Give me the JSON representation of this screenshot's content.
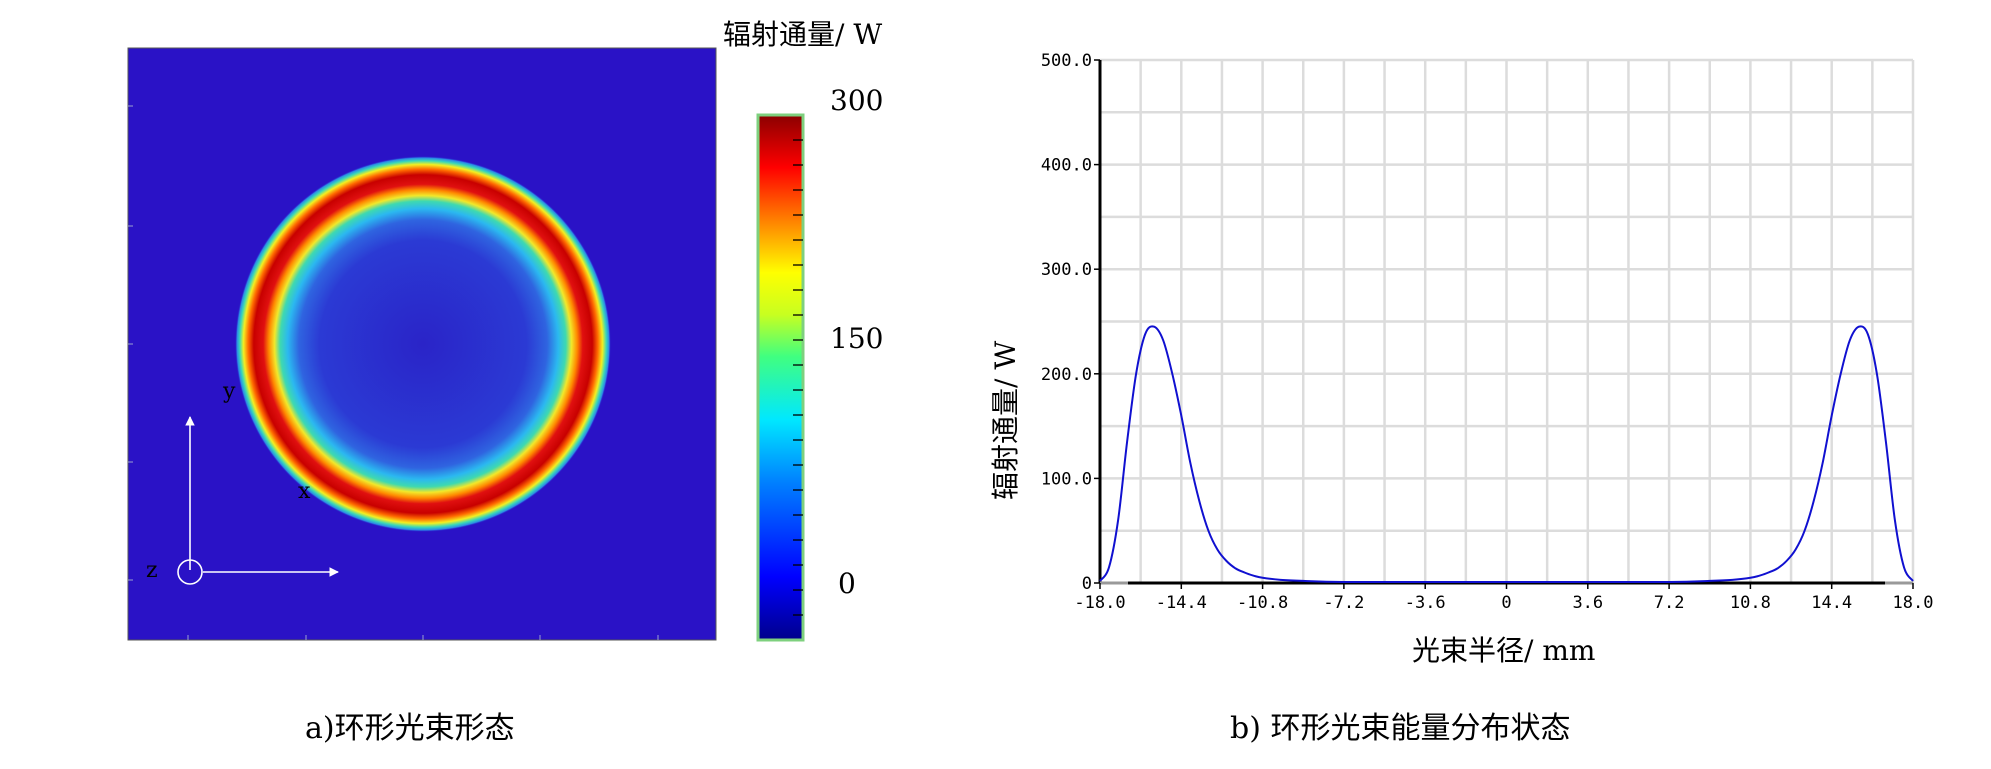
{
  "figure_a": {
    "caption": "a)环形光束形态",
    "colorbar_title": "辐射通量/ W",
    "colorbar_ticks": [
      "300",
      "150",
      "0"
    ],
    "colorbar_range": [
      0,
      300
    ],
    "axes": {
      "x": "x",
      "y": "y",
      "z": "z"
    },
    "colors": {
      "background": "#2a12c6",
      "ring_peak": "#c00000"
    }
  },
  "figure_b": {
    "caption": "b) 环形光束能量分布状态",
    "line_color": "#1010d0"
  },
  "chart_data": {
    "type": "line",
    "xlabel": "光束半径/ mm",
    "ylabel": "辐射通量/ W",
    "xlim": [
      -18,
      18
    ],
    "ylim": [
      0,
      500
    ],
    "grid": true,
    "xticks": [
      "-18.0",
      "-14.4",
      "-10.8",
      "-7.2",
      "-3.6",
      "0",
      "3.6",
      "7.2",
      "10.8",
      "14.4",
      "18.0"
    ],
    "yticks": [
      "0",
      "100.0",
      "200.0",
      "300.0",
      "400.0",
      "500.0"
    ],
    "series": [
      {
        "x": [
          -18.0,
          -17.6,
          -17.2,
          -16.8,
          -16.4,
          -16.0,
          -15.6,
          -15.2,
          -14.8,
          -14.4,
          -14.0,
          -13.6,
          -13.2,
          -12.8,
          -12.4,
          -12.0,
          -11.6,
          -11.2,
          -10.8,
          -10.0,
          -9.0,
          -7.2,
          -3.6,
          0,
          3.6,
          7.2,
          9.0,
          10.0,
          10.8,
          11.2,
          11.6,
          12.0,
          12.4,
          12.8,
          13.2,
          13.6,
          14.0,
          14.4,
          14.8,
          15.2,
          15.6,
          16.0,
          16.4,
          16.8,
          17.2,
          17.6,
          18.0
        ],
        "y": [
          2,
          15,
          60,
          135,
          200,
          238,
          245,
          232,
          200,
          160,
          115,
          78,
          50,
          32,
          21,
          14,
          10,
          7,
          5,
          3,
          2,
          1,
          1,
          1,
          1,
          1,
          2,
          3,
          5,
          7,
          10,
          14,
          21,
          32,
          50,
          78,
          115,
          160,
          200,
          232,
          245,
          238,
          200,
          135,
          60,
          15,
          2
        ]
      }
    ]
  }
}
